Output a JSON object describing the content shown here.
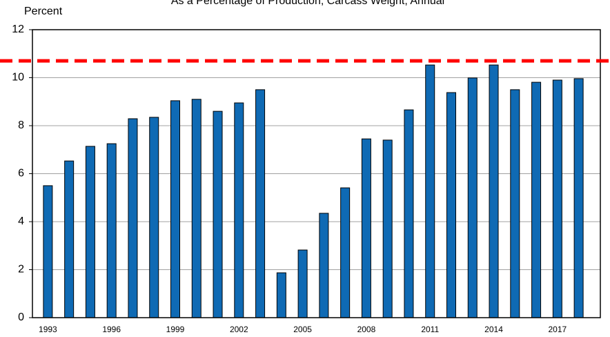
{
  "chart_data": {
    "type": "bar",
    "title": "As a Percentage of Production, Carcass Weight, Annual",
    "y_label": "Percent",
    "categories": [
      "1993",
      null,
      null,
      "1996",
      null,
      null,
      "1999",
      null,
      null,
      "2002",
      null,
      null,
      "2005",
      null,
      null,
      "2008",
      null,
      null,
      "2011",
      null,
      null,
      "2014",
      null,
      null,
      "2017",
      null
    ],
    "values": [
      5.5,
      6.53,
      7.14,
      7.25,
      8.29,
      8.35,
      9.04,
      9.1,
      8.6,
      8.95,
      9.5,
      1.87,
      2.82,
      4.35,
      5.41,
      7.45,
      7.4,
      8.66,
      10.53,
      9.38,
      9.99,
      10.53,
      9.5,
      9.81,
      9.9,
      9.96
    ],
    "color": "#0f6ab4",
    "reference_line": {
      "value": 10.7,
      "color": "#ff0000"
    },
    "ylim": [
      0,
      12
    ],
    "yticks": [
      0,
      2,
      4,
      6,
      8,
      10,
      12
    ],
    "grid": true
  }
}
